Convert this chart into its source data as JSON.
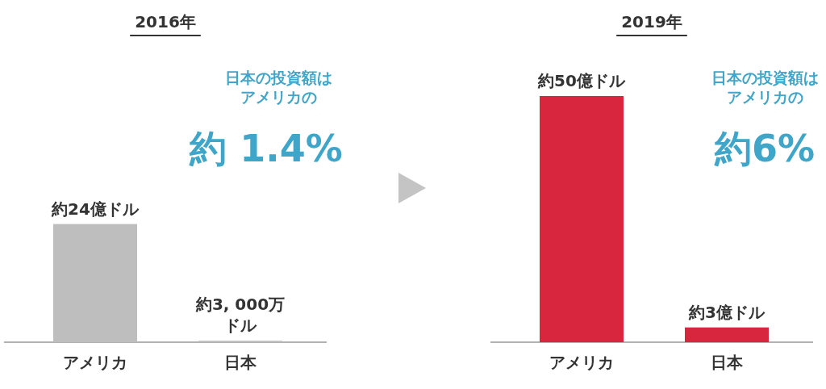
{
  "chart_data": [
    {
      "type": "bar",
      "title": "2016年",
      "categories": [
        "アメリカ",
        "日本"
      ],
      "values": [
        24,
        0.3
      ],
      "colors": [
        "#bebebe",
        "#bebebe"
      ],
      "value_labels": [
        "約24億ドル",
        "約3, 000万ドル"
      ],
      "annotations": [
        "日本の投資額はアメリカの",
        "約 1.4%"
      ]
    },
    {
      "type": "bar",
      "title": "2019年",
      "categories": [
        "アメリカ",
        "日本"
      ],
      "values": [
        50,
        3
      ],
      "colors": [
        "#d7263d",
        "#d7263d"
      ],
      "value_labels": [
        "約50億ドル",
        "約3億ドル"
      ],
      "annotations": [
        "日本の投資額はアメリカの",
        "約6%"
      ]
    }
  ]
}
